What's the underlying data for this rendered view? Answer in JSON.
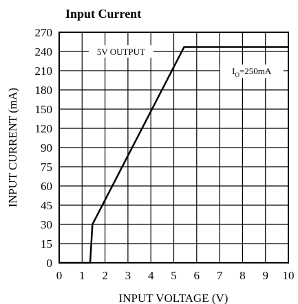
{
  "chart_data": {
    "type": "line",
    "title": "Input Current",
    "xlabel": "INPUT VOLTAGE (V)",
    "ylabel": "INPUT CURRENT (mA)",
    "x_ticks": [
      0,
      1,
      2,
      3,
      4,
      5,
      6,
      7,
      8,
      9,
      10
    ],
    "y_ticks": [
      0,
      15,
      30,
      45,
      60,
      75,
      90,
      120,
      150,
      180,
      210,
      240,
      270
    ],
    "xlim": [
      0,
      10
    ],
    "ylim": [
      0,
      270
    ],
    "grid": true,
    "series": [
      {
        "x": [
          0,
          1.35,
          1.45,
          5.45,
          10
        ],
        "y": [
          0,
          0,
          30,
          247,
          247
        ]
      }
    ],
    "annotations": [
      {
        "text": "5V OUTPUT",
        "x": 2.7,
        "y": 240
      },
      {
        "text_main": "I",
        "text_sub": "O",
        "text_rest": "=250mA",
        "x": 8.4,
        "y": 210
      }
    ]
  }
}
